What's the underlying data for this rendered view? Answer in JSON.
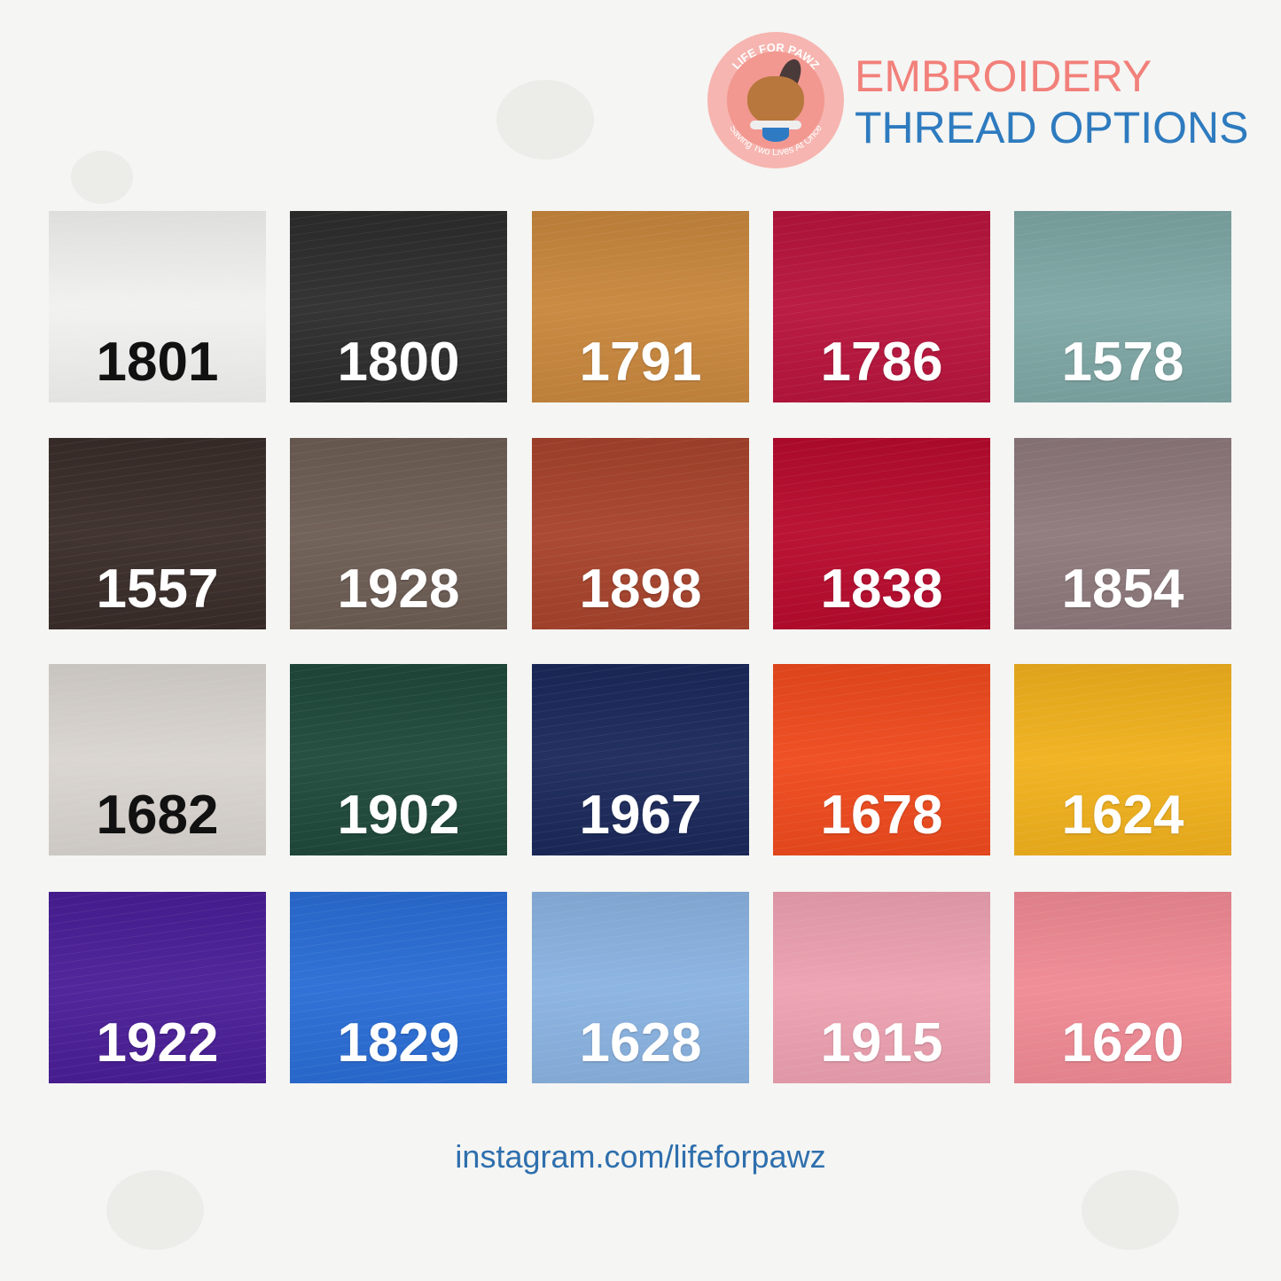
{
  "logo": {
    "top_text": "LIFE FOR PAWZ",
    "bottom_text": "Saving Two Lives At Once",
    "bone_text": "LIFE FOR PAWZ"
  },
  "title": {
    "line1": "EMBROIDERY",
    "line2": "THREAD OPTIONS",
    "line1_color": "#f2807a",
    "line2_color": "#2e7bbf"
  },
  "swatches": [
    {
      "code": "1801",
      "color": "#f1f1f0",
      "text": "dark"
    },
    {
      "code": "1800",
      "color": "#2d2d2d",
      "text": "light"
    },
    {
      "code": "1791",
      "color": "#c8873d",
      "text": "light"
    },
    {
      "code": "1786",
      "color": "#b8143c",
      "text": "light"
    },
    {
      "code": "1578",
      "color": "#7ea7a5",
      "text": "light"
    },
    {
      "code": "1557",
      "color": "#3a2d2a",
      "text": "light"
    },
    {
      "code": "1928",
      "color": "#6d5d54",
      "text": "light"
    },
    {
      "code": "1898",
      "color": "#a7432c",
      "text": "light"
    },
    {
      "code": "1838",
      "color": "#b80b2d",
      "text": "light"
    },
    {
      "code": "1854",
      "color": "#8e797b",
      "text": "light"
    },
    {
      "code": "1682",
      "color": "#d9d4cf",
      "text": "dark"
    },
    {
      "code": "1902",
      "color": "#1f493b",
      "text": "light"
    },
    {
      "code": "1967",
      "color": "#1b295b",
      "text": "light"
    },
    {
      "code": "1678",
      "color": "#ef4a1d",
      "text": "light"
    },
    {
      "code": "1624",
      "color": "#f1b11d",
      "text": "light"
    },
    {
      "code": "1922",
      "color": "#4a1e97",
      "text": "light"
    },
    {
      "code": "1829",
      "color": "#2a6dd5",
      "text": "light"
    },
    {
      "code": "1628",
      "color": "#8ab3e1",
      "text": "light"
    },
    {
      "code": "1915",
      "color": "#eda1b1",
      "text": "light"
    },
    {
      "code": "1620",
      "color": "#f08a94",
      "text": "light"
    }
  ],
  "footer": {
    "link": "instagram.com/lifeforpawz"
  }
}
